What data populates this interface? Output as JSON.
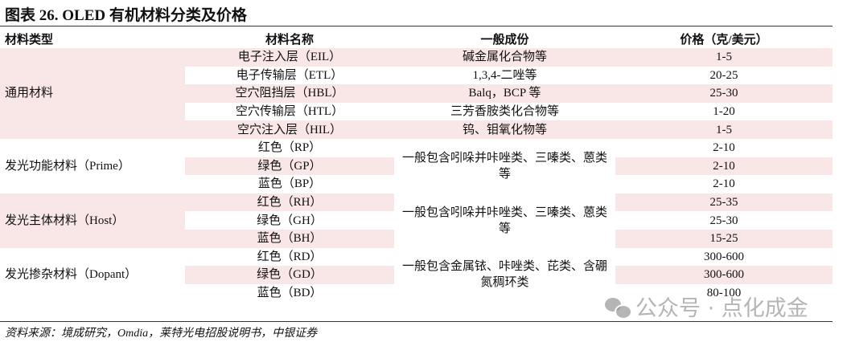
{
  "title": "图表 26. OLED 有机材料分类及价格",
  "headers": [
    "材料类型",
    "材料名称",
    "一般成份",
    "价格（克/美元）"
  ],
  "groups": [
    {
      "type": "通用材料",
      "rows": [
        {
          "name": "电子注入层（EIL）",
          "comp": "碱金属化合物等",
          "price": "1-5"
        },
        {
          "name": "电子传输层（ETL）",
          "comp": "1,3,4-二唑等",
          "price": "20-25"
        },
        {
          "name": "空穴阻挡层（HBL）",
          "comp": "Balq，BCP 等",
          "price": "25-30"
        },
        {
          "name": "空穴传输层（HTL）",
          "comp": "三芳香胺类化合物等",
          "price": "1-20"
        },
        {
          "name": "空穴注入层（HIL）",
          "comp": "钨、钼氧化物等",
          "price": "1-5"
        }
      ]
    },
    {
      "type": "发光功能材料（Prime）",
      "comp": "一般包含吲哚并咔唑类、三嗪类、蒽类等",
      "rows": [
        {
          "name": "红色（RP）",
          "price": "2-10"
        },
        {
          "name": "绿色（GP）",
          "price": "2-10"
        },
        {
          "name": "蓝色（BP）",
          "price": "2-10"
        }
      ]
    },
    {
      "type": "发光主体材料（Host）",
      "comp": "一般包含吲哚并咔唑类、三嗪类、蒽类等",
      "rows": [
        {
          "name": "红色（RH）",
          "price": "25-35"
        },
        {
          "name": "绿色（GH）",
          "price": "25-30"
        },
        {
          "name": "蓝色（BH）",
          "price": "15-25"
        }
      ]
    },
    {
      "type": "发光掺杂材料（Dopant）",
      "comp": "一般包含金属铱、咔唑类、芘类、含硼氮稠环类",
      "rows": [
        {
          "name": "红色（RD）",
          "price": "300-600"
        },
        {
          "name": "绿色（GD）",
          "price": "300-600"
        },
        {
          "name": "蓝色（BD）",
          "price": "80-100"
        }
      ]
    }
  ],
  "source": "资料来源：境成研究，Omdia，莱特光电招股说明书，中银证券",
  "watermark": "公众号 · 点化成金",
  "colors": {
    "row_shade": "#f9e6e6"
  }
}
